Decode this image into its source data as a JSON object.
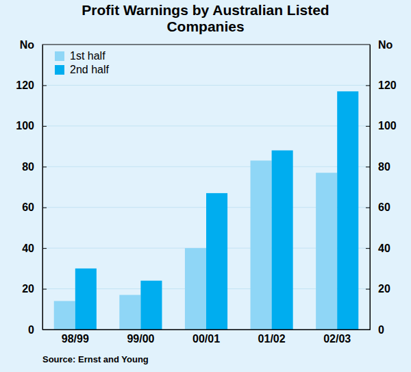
{
  "chart_data": {
    "type": "bar",
    "title": "Profit Warnings by Australian Listed Companies",
    "ylabel": "No",
    "y2label": "No",
    "source": "Source: Ernst and Young",
    "categories": [
      "98/99",
      "99/00",
      "00/01",
      "01/02",
      "02/03"
    ],
    "series": [
      {
        "name": "1st half",
        "color": "#8fd6f6",
        "values": [
          14,
          17,
          40,
          83,
          77
        ]
      },
      {
        "name": "2nd half",
        "color": "#00adef",
        "values": [
          30,
          24,
          67,
          88,
          117
        ]
      }
    ],
    "ylim": [
      0,
      140
    ],
    "yticks": [
      0,
      20,
      40,
      60,
      80,
      100,
      120
    ],
    "y2lim": [
      0,
      140
    ],
    "y2ticks": [
      0,
      20,
      40,
      60,
      80,
      100,
      120
    ],
    "grid": true,
    "legend": "upper left"
  }
}
